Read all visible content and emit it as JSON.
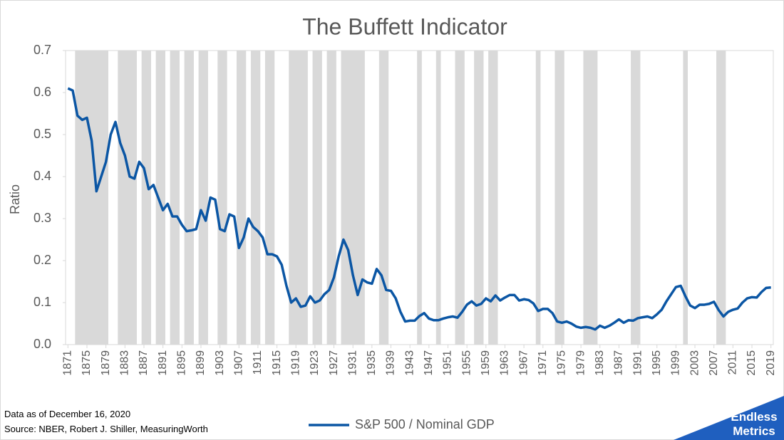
{
  "chart_data": {
    "type": "line",
    "title": "The Buffett Indicator",
    "y_label": "Ratio",
    "footnotes": [
      "Data as of December 16, 2020",
      "Source: NBER, Robert J. Shiller, MeasuringWorth"
    ],
    "logo": [
      "Endless",
      "Metrics"
    ],
    "x": [
      1871,
      1872,
      1873,
      1874,
      1875,
      1876,
      1877,
      1878,
      1879,
      1880,
      1881,
      1882,
      1883,
      1884,
      1885,
      1886,
      1887,
      1888,
      1889,
      1890,
      1891,
      1892,
      1893,
      1894,
      1895,
      1896,
      1897,
      1898,
      1899,
      1900,
      1901,
      1902,
      1903,
      1904,
      1905,
      1906,
      1907,
      1908,
      1909,
      1910,
      1911,
      1912,
      1913,
      1914,
      1915,
      1916,
      1917,
      1918,
      1919,
      1920,
      1921,
      1922,
      1923,
      1924,
      1925,
      1926,
      1927,
      1928,
      1929,
      1930,
      1931,
      1932,
      1933,
      1934,
      1935,
      1936,
      1937,
      1938,
      1939,
      1940,
      1941,
      1942,
      1943,
      1944,
      1945,
      1946,
      1947,
      1948,
      1949,
      1950,
      1951,
      1952,
      1953,
      1954,
      1955,
      1956,
      1957,
      1958,
      1959,
      1960,
      1961,
      1962,
      1963,
      1964,
      1965,
      1966,
      1967,
      1968,
      1969,
      1970,
      1971,
      1972,
      1973,
      1974,
      1975,
      1976,
      1977,
      1978,
      1979,
      1980,
      1981,
      1982,
      1983,
      1984,
      1985,
      1986,
      1987,
      1988,
      1989,
      1990,
      1991,
      1992,
      1993,
      1994,
      1995,
      1996,
      1997,
      1998,
      1999,
      2000,
      2001,
      2002,
      2003,
      2004,
      2005,
      2006,
      2007,
      2008,
      2009,
      2010,
      2011,
      2012,
      2013,
      2014,
      2015,
      2016,
      2017,
      2018,
      2019
    ],
    "series": [
      {
        "name": "S&P 500 / Nominal GDP",
        "color": "#0b56a4",
        "values": [
          0.61,
          0.605,
          0.545,
          0.535,
          0.54,
          0.485,
          0.365,
          0.4,
          0.435,
          0.5,
          0.53,
          0.48,
          0.45,
          0.4,
          0.395,
          0.435,
          0.42,
          0.37,
          0.38,
          0.35,
          0.32,
          0.335,
          0.305,
          0.305,
          0.285,
          0.27,
          0.272,
          0.275,
          0.32,
          0.295,
          0.35,
          0.345,
          0.275,
          0.27,
          0.31,
          0.305,
          0.23,
          0.255,
          0.3,
          0.28,
          0.27,
          0.255,
          0.215,
          0.215,
          0.21,
          0.19,
          0.14,
          0.1,
          0.11,
          0.09,
          0.093,
          0.115,
          0.1,
          0.105,
          0.12,
          0.13,
          0.16,
          0.21,
          0.25,
          0.225,
          0.165,
          0.118,
          0.155,
          0.148,
          0.145,
          0.18,
          0.165,
          0.13,
          0.128,
          0.11,
          0.078,
          0.055,
          0.057,
          0.057,
          0.068,
          0.075,
          0.062,
          0.058,
          0.058,
          0.062,
          0.065,
          0.067,
          0.064,
          0.078,
          0.095,
          0.103,
          0.093,
          0.097,
          0.11,
          0.103,
          0.117,
          0.105,
          0.112,
          0.118,
          0.118,
          0.105,
          0.108,
          0.106,
          0.098,
          0.08,
          0.085,
          0.085,
          0.075,
          0.055,
          0.052,
          0.055,
          0.05,
          0.043,
          0.04,
          0.042,
          0.04,
          0.036,
          0.045,
          0.04,
          0.045,
          0.052,
          0.06,
          0.052,
          0.058,
          0.057,
          0.063,
          0.065,
          0.067,
          0.063,
          0.072,
          0.083,
          0.103,
          0.12,
          0.137,
          0.14,
          0.115,
          0.093,
          0.087,
          0.095,
          0.095,
          0.097,
          0.102,
          0.082,
          0.067,
          0.078,
          0.083,
          0.086,
          0.1,
          0.11,
          0.113,
          0.112,
          0.125,
          0.135,
          0.136
        ]
      }
    ],
    "recessions": [
      [
        1873,
        1879
      ],
      [
        1882,
        1885
      ],
      [
        1887,
        1888
      ],
      [
        1890,
        1891
      ],
      [
        1893,
        1894
      ],
      [
        1896,
        1897
      ],
      [
        1899,
        1900
      ],
      [
        1903,
        1904
      ],
      [
        1907,
        1908
      ],
      [
        1910,
        1911
      ],
      [
        1913,
        1914
      ],
      [
        1918,
        1921
      ],
      [
        1923,
        1924
      ],
      [
        1926,
        1927
      ],
      [
        1929,
        1933
      ],
      [
        1937,
        1938
      ],
      [
        1945,
        1945
      ],
      [
        1949,
        1949
      ],
      [
        1953,
        1954
      ],
      [
        1957,
        1958
      ],
      [
        1960,
        1961
      ],
      [
        1970,
        1970
      ],
      [
        1974,
        1975
      ],
      [
        1980,
        1982
      ],
      [
        1990,
        1991
      ],
      [
        2001,
        2001
      ],
      [
        2008,
        2009
      ]
    ],
    "recession_color": "#d9d9d9",
    "xlim": [
      1870.5,
      2019.5
    ],
    "xticks": [
      1871,
      1875,
      1879,
      1883,
      1887,
      1891,
      1895,
      1899,
      1903,
      1907,
      1911,
      1915,
      1919,
      1923,
      1927,
      1931,
      1935,
      1939,
      1943,
      1947,
      1951,
      1955,
      1959,
      1963,
      1967,
      1971,
      1975,
      1979,
      1983,
      1987,
      1991,
      1995,
      1999,
      2003,
      2007,
      2011,
      2015,
      2019
    ],
    "ylim": [
      0,
      0.7
    ],
    "yticks": [
      {
        "value": 0,
        "label": "0.0"
      },
      0.1,
      0.2,
      0.3,
      0.4,
      0.5,
      0.6,
      0.7
    ],
    "grid": false,
    "legend": "bottom"
  }
}
